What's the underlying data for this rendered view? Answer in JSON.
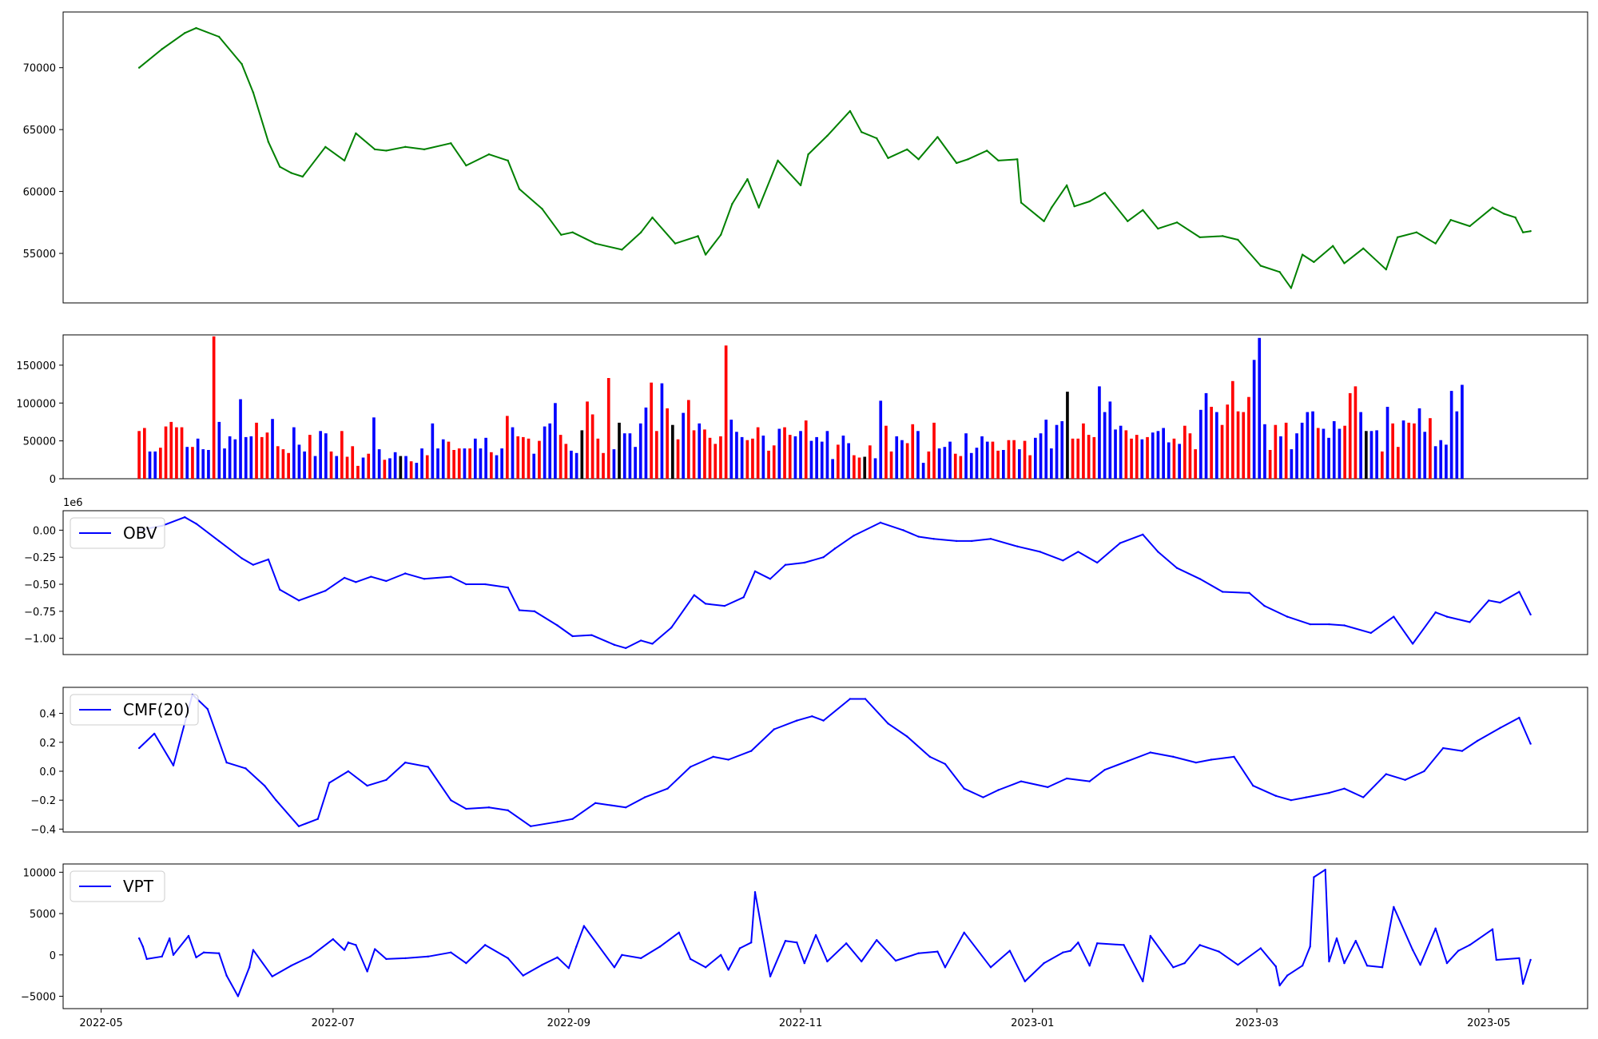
{
  "chart_data": [
    {
      "type": "line",
      "id": "price",
      "color": "#008000",
      "ylim": [
        51000,
        74500
      ],
      "yticks": [
        55000,
        60000,
        65000,
        70000
      ],
      "ytick_labels": [
        "55000",
        "60000",
        "65000",
        "70000"
      ],
      "x": [
        "2022-05-11",
        "2022-05-17",
        "2022-05-23",
        "2022-05-26",
        "2022-06-01",
        "2022-06-07",
        "2022-06-10",
        "2022-06-14",
        "2022-06-17",
        "2022-06-20",
        "2022-06-23",
        "2022-06-29",
        "2022-07-04",
        "2022-07-07",
        "2022-07-12",
        "2022-07-15",
        "2022-07-20",
        "2022-07-25",
        "2022-08-01",
        "2022-08-05",
        "2022-08-11",
        "2022-08-16",
        "2022-08-19",
        "2022-08-25",
        "2022-08-30",
        "2022-09-02",
        "2022-09-08",
        "2022-09-15",
        "2022-09-20",
        "2022-09-23",
        "2022-09-29",
        "2022-10-05",
        "2022-10-07",
        "2022-10-11",
        "2022-10-14",
        "2022-10-18",
        "2022-10-21",
        "2022-10-26",
        "2022-11-01",
        "2022-11-03",
        "2022-11-08",
        "2022-11-14",
        "2022-11-17",
        "2022-11-21",
        "2022-11-24",
        "2022-11-29",
        "2022-12-02",
        "2022-12-07",
        "2022-12-12",
        "2022-12-15",
        "2022-12-20",
        "2022-12-23",
        "2022-12-28",
        "2022-12-29",
        "2023-01-04",
        "2023-01-06",
        "2023-01-10",
        "2023-01-12",
        "2023-01-16",
        "2023-01-20",
        "2023-01-26",
        "2023-01-30",
        "2023-02-03",
        "2023-02-08",
        "2023-02-14",
        "2023-02-20",
        "2023-02-24",
        "2023-03-02",
        "2023-03-07",
        "2023-03-10",
        "2023-03-13",
        "2023-03-16",
        "2023-03-21",
        "2023-03-24",
        "2023-03-29",
        "2023-04-04",
        "2023-04-07",
        "2023-04-12",
        "2023-04-17",
        "2023-04-21",
        "2023-04-26",
        "2023-05-02",
        "2023-05-05",
        "2023-05-08",
        "2023-05-10",
        "2023-05-12"
      ],
      "values": [
        70000,
        71500,
        72800,
        73200,
        72500,
        70300,
        68000,
        64000,
        62000,
        61500,
        61200,
        63600,
        62500,
        64700,
        63400,
        63300,
        63600,
        63400,
        63900,
        62100,
        63000,
        62500,
        60200,
        58600,
        56500,
        56700,
        55800,
        55300,
        56700,
        57900,
        55800,
        56400,
        54900,
        56500,
        59000,
        61000,
        58700,
        62500,
        60500,
        63000,
        64500,
        66500,
        64800,
        64300,
        62700,
        63400,
        62600,
        64400,
        62300,
        62600,
        63300,
        62500,
        62600,
        59100,
        57600,
        58700,
        60500,
        58800,
        59200,
        59900,
        57600,
        58500,
        57000,
        57500,
        56300,
        56400,
        56100,
        54000,
        53500,
        52200,
        54900,
        54300,
        55600,
        54200,
        55400,
        53700,
        56300,
        56700,
        55800,
        57700,
        57200,
        58700,
        58200,
        57900,
        56700,
        56800
      ]
    },
    {
      "type": "bar",
      "id": "volume",
      "ylim": [
        0,
        190000
      ],
      "yticks": [
        0,
        50000,
        100000,
        150000
      ],
      "ytick_labels": [
        "0",
        "50000",
        "100000",
        "150000"
      ],
      "colors": {
        "up": "#ff0000",
        "down": "#0000ff",
        "flat": "#000000"
      },
      "color_pattern": "rrbbrrrrrbrbbbrbbbbbbbrrrbrrrbbbrbbbrbrrrrbrbbrbbbbrbbrbbbrrrbrbbbrbbrbrrrbrbbbrrbbrrrrrrbbbbbbbrrbrrrbrrbrrrrrbbbrrrbrrbrrbbrbbbbbrbbrrrrbbrrbbrrbbrrbbbrrbbbbbrrbrrbrrbbbbbbbrrrrrbbbbbrrrbrbbbbrbrrrbbrbrrrrrrbbbrrbrbbbbbrbbbbrrrbbbbrbrrbrrbbrbbbbbbbrrrrrbbbbrrrrrbbbbbbrrbrrbrrbbrrrrrbbrbbrbbbrbbbbbbrrrrbbrrbrrrbbrrrbrrbbr",
      "values": [
        63000,
        67000,
        36000,
        36000,
        41000,
        69000,
        75000,
        68000,
        68000,
        42000,
        42000,
        53000,
        39000,
        38000,
        188000,
        75000,
        40000,
        56000,
        52000,
        105000,
        55000,
        56000,
        74000,
        55000,
        61000,
        79000,
        43000,
        39000,
        34000,
        68000,
        45000,
        36000,
        58000,
        30000,
        63000,
        60000,
        36000,
        30000,
        63000,
        29000,
        43000,
        17000,
        28000,
        33000,
        81000,
        39000,
        25000,
        27000,
        35000,
        30000,
        30000,
        23000,
        21000,
        40000,
        31000,
        73000,
        40000,
        52000,
        49000,
        38000,
        40000,
        40000,
        40000,
        53000,
        40000,
        54000,
        35000,
        31000,
        40000,
        83000,
        68000,
        56000,
        55000,
        53000,
        33000,
        50000,
        69000,
        73000,
        100000,
        58000,
        46000,
        37000,
        34000,
        64000,
        102000,
        85000,
        53000,
        34000,
        133000,
        39000,
        74000,
        60000,
        60000,
        42000,
        73000,
        94000,
        127000,
        63000,
        126000,
        93000,
        71000,
        52000,
        87000,
        104000,
        64000,
        73000,
        65000,
        54000,
        46000,
        56000,
        176000,
        78000,
        62000,
        55000,
        51000,
        53000,
        68000,
        57000,
        37000,
        44000,
        66000,
        68000,
        58000,
        56000,
        63000,
        77000,
        50000,
        55000,
        49000,
        63000,
        26000,
        45000,
        57000,
        47000,
        31000,
        28000,
        29000,
        44000,
        27000,
        103000,
        70000,
        36000,
        56000,
        51000,
        47000,
        72000,
        63000,
        21000,
        36000,
        74000,
        40000,
        42000,
        49000,
        33000,
        30000,
        60000,
        34000,
        41000,
        56000,
        49000,
        49000,
        37000,
        38000,
        51000,
        51000,
        39000,
        50000,
        31000,
        54000,
        60000,
        78000,
        40000,
        71000,
        76000,
        115000,
        53000,
        53000,
        73000,
        58000,
        55000,
        122000,
        88000,
        102000,
        65000,
        70000,
        64000,
        53000,
        58000,
        52000,
        55000,
        61000,
        63000,
        67000,
        48000,
        53000,
        46000,
        70000,
        60000,
        39000,
        91000,
        113000,
        95000,
        88000,
        71000,
        98000,
        129000,
        89000,
        88000,
        108000,
        157000,
        186000,
        72000,
        38000,
        71000,
        56000,
        74000,
        39000,
        60000,
        74000,
        88000,
        89000,
        67000,
        66000,
        54000,
        76000,
        66000,
        70000,
        113000,
        122000,
        88000,
        63000,
        63000,
        64000,
        36000,
        95000,
        73000,
        42000,
        77000,
        74000,
        73000,
        93000,
        62000,
        80000,
        43000,
        51000,
        45000,
        116000,
        89000,
        124000
      ]
    },
    {
      "type": "line",
      "id": "obv",
      "color": "#0000ff",
      "legend": "OBV",
      "legend_position": "upper left",
      "offset_label": "1e6",
      "ylim": [
        -1.15,
        0.18
      ],
      "yticks": [
        -1.0,
        -0.75,
        -0.5,
        -0.25,
        0.0
      ],
      "ytick_labels": [
        "−1.00",
        "−0.75",
        "−0.50",
        "−0.25",
        "0.00"
      ],
      "x": [
        "2022-05-11",
        "2022-05-17",
        "2022-05-23",
        "2022-05-26",
        "2022-06-01",
        "2022-06-07",
        "2022-06-10",
        "2022-06-14",
        "2022-06-17",
        "2022-06-22",
        "2022-06-29",
        "2022-07-04",
        "2022-07-07",
        "2022-07-11",
        "2022-07-15",
        "2022-07-20",
        "2022-07-25",
        "2022-08-01",
        "2022-08-05",
        "2022-08-10",
        "2022-08-16",
        "2022-08-19",
        "2022-08-23",
        "2022-08-29",
        "2022-09-02",
        "2022-09-07",
        "2022-09-13",
        "2022-09-16",
        "2022-09-20",
        "2022-09-23",
        "2022-09-28",
        "2022-10-04",
        "2022-10-07",
        "2022-10-12",
        "2022-10-17",
        "2022-10-20",
        "2022-10-24",
        "2022-10-28",
        "2022-11-02",
        "2022-11-07",
        "2022-11-10",
        "2022-11-15",
        "2022-11-22",
        "2022-11-28",
        "2022-12-02",
        "2022-12-06",
        "2022-12-12",
        "2022-12-16",
        "2022-12-21",
        "2022-12-28",
        "2023-01-03",
        "2023-01-09",
        "2023-01-13",
        "2023-01-18",
        "2023-01-24",
        "2023-01-30",
        "2023-02-03",
        "2023-02-08",
        "2023-02-14",
        "2023-02-20",
        "2023-02-27",
        "2023-03-03",
        "2023-03-09",
        "2023-03-15",
        "2023-03-20",
        "2023-03-24",
        "2023-03-31",
        "2023-04-06",
        "2023-04-11",
        "2023-04-17",
        "2023-04-20",
        "2023-04-26",
        "2023-05-01",
        "2023-05-04",
        "2023-05-09",
        "2023-05-12"
      ],
      "values": [
        0.0,
        0.04,
        0.12,
        0.06,
        -0.1,
        -0.26,
        -0.32,
        -0.27,
        -0.55,
        -0.65,
        -0.56,
        -0.44,
        -0.48,
        -0.43,
        -0.47,
        -0.4,
        -0.45,
        -0.43,
        -0.5,
        -0.5,
        -0.53,
        -0.74,
        -0.75,
        -0.88,
        -0.98,
        -0.97,
        -1.06,
        -1.09,
        -1.02,
        -1.05,
        -0.9,
        -0.6,
        -0.68,
        -0.7,
        -0.62,
        -0.38,
        -0.45,
        -0.32,
        -0.3,
        -0.25,
        -0.17,
        -0.05,
        0.07,
        0.0,
        -0.06,
        -0.08,
        -0.1,
        -0.1,
        -0.08,
        -0.15,
        -0.2,
        -0.28,
        -0.2,
        -0.3,
        -0.12,
        -0.04,
        -0.2,
        -0.35,
        -0.45,
        -0.57,
        -0.58,
        -0.7,
        -0.8,
        -0.87,
        -0.87,
        -0.88,
        -0.95,
        -0.8,
        -1.05,
        -0.76,
        -0.8,
        -0.85,
        -0.65,
        -0.67,
        -0.57,
        -0.78
      ]
    },
    {
      "type": "line",
      "id": "cmf",
      "color": "#0000ff",
      "legend": "CMF(20)",
      "legend_position": "upper left",
      "ylim": [
        -0.42,
        0.58
      ],
      "yticks": [
        -0.4,
        -0.2,
        0.0,
        0.2,
        0.4
      ],
      "ytick_labels": [
        "−0.4",
        "−0.2",
        "0.0",
        "0.2",
        "0.4"
      ],
      "x": [
        "2022-05-11",
        "2022-05-15",
        "2022-05-20",
        "2022-05-25",
        "2022-05-29",
        "2022-06-03",
        "2022-06-08",
        "2022-06-13",
        "2022-06-16",
        "2022-06-22",
        "2022-06-27",
        "2022-06-30",
        "2022-07-05",
        "2022-07-10",
        "2022-07-15",
        "2022-07-20",
        "2022-07-26",
        "2022-08-01",
        "2022-08-05",
        "2022-08-11",
        "2022-08-16",
        "2022-08-22",
        "2022-08-29",
        "2022-09-02",
        "2022-09-08",
        "2022-09-16",
        "2022-09-21",
        "2022-09-27",
        "2022-10-03",
        "2022-10-09",
        "2022-10-13",
        "2022-10-19",
        "2022-10-25",
        "2022-10-31",
        "2022-11-04",
        "2022-11-07",
        "2022-11-14",
        "2022-11-18",
        "2022-11-24",
        "2022-11-29",
        "2022-12-05",
        "2022-12-09",
        "2022-12-14",
        "2022-12-19",
        "2022-12-23",
        "2022-12-29",
        "2023-01-05",
        "2023-01-10",
        "2023-01-16",
        "2023-01-20",
        "2023-01-26",
        "2023-02-01",
        "2023-02-07",
        "2023-02-13",
        "2023-02-17",
        "2023-02-23",
        "2023-02-28",
        "2023-03-06",
        "2023-03-10",
        "2023-03-14",
        "2023-03-20",
        "2023-03-24",
        "2023-03-29",
        "2023-04-04",
        "2023-04-09",
        "2023-04-14",
        "2023-04-19",
        "2023-04-24",
        "2023-04-28",
        "2023-05-04",
        "2023-05-09",
        "2023-05-12"
      ],
      "values": [
        0.16,
        0.26,
        0.04,
        0.53,
        0.43,
        0.06,
        0.02,
        -0.1,
        -0.2,
        -0.38,
        -0.33,
        -0.08,
        0.0,
        -0.1,
        -0.06,
        0.06,
        0.03,
        -0.2,
        -0.26,
        -0.25,
        -0.27,
        -0.38,
        -0.35,
        -0.33,
        -0.22,
        -0.25,
        -0.18,
        -0.12,
        0.03,
        0.1,
        0.08,
        0.14,
        0.29,
        0.35,
        0.38,
        0.35,
        0.5,
        0.5,
        0.33,
        0.24,
        0.1,
        0.05,
        -0.12,
        -0.18,
        -0.13,
        -0.07,
        -0.11,
        -0.05,
        -0.07,
        0.01,
        0.07,
        0.13,
        0.1,
        0.06,
        0.08,
        0.1,
        -0.1,
        -0.17,
        -0.2,
        -0.18,
        -0.15,
        -0.12,
        -0.18,
        -0.02,
        -0.06,
        0.0,
        0.16,
        0.14,
        0.21,
        0.3,
        0.37,
        0.19
      ]
    },
    {
      "type": "line",
      "id": "vpt",
      "color": "#0000ff",
      "legend": "VPT",
      "legend_position": "upper left",
      "ylim": [
        -6500,
        11000
      ],
      "yticks": [
        -5000,
        0,
        5000,
        10000
      ],
      "ytick_labels": [
        "−5000",
        "0",
        "5000",
        "10000"
      ],
      "x": [
        "2022-05-11",
        "2022-05-12",
        "2022-05-13",
        "2022-05-17",
        "2022-05-19",
        "2022-05-20",
        "2022-05-24",
        "2022-05-26",
        "2022-05-28",
        "2022-06-01",
        "2022-06-03",
        "2022-06-06",
        "2022-06-09",
        "2022-06-10",
        "2022-06-15",
        "2022-06-20",
        "2022-06-25",
        "2022-07-01",
        "2022-07-04",
        "2022-07-05",
        "2022-07-07",
        "2022-07-10",
        "2022-07-12",
        "2022-07-15",
        "2022-07-20",
        "2022-07-26",
        "2022-08-01",
        "2022-08-05",
        "2022-08-10",
        "2022-08-16",
        "2022-08-20",
        "2022-08-25",
        "2022-08-29",
        "2022-09-01",
        "2022-09-03",
        "2022-09-05",
        "2022-09-13",
        "2022-09-15",
        "2022-09-20",
        "2022-09-25",
        "2022-09-30",
        "2022-10-03",
        "2022-10-07",
        "2022-10-11",
        "2022-10-13",
        "2022-10-16",
        "2022-10-19",
        "2022-10-20",
        "2022-10-24",
        "2022-10-28",
        "2022-10-31",
        "2022-11-02",
        "2022-11-05",
        "2022-11-08",
        "2022-11-13",
        "2022-11-17",
        "2022-11-21",
        "2022-11-26",
        "2022-12-02",
        "2022-12-07",
        "2022-12-09",
        "2022-12-14",
        "2022-12-21",
        "2022-12-26",
        "2022-12-30",
        "2023-01-04",
        "2023-01-09",
        "2023-01-11",
        "2023-01-13",
        "2023-01-16",
        "2023-01-18",
        "2023-01-25",
        "2023-01-30",
        "2023-02-01",
        "2023-02-07",
        "2023-02-10",
        "2023-02-14",
        "2023-02-19",
        "2023-02-24",
        "2023-03-02",
        "2023-03-06",
        "2023-03-07",
        "2023-03-09",
        "2023-03-13",
        "2023-03-15",
        "2023-03-16",
        "2023-03-19",
        "2023-03-20",
        "2023-03-22",
        "2023-03-24",
        "2023-03-27",
        "2023-03-30",
        "2023-04-03",
        "2023-04-06",
        "2023-04-11",
        "2023-04-13",
        "2023-04-17",
        "2023-04-20",
        "2023-04-23",
        "2023-04-26",
        "2023-05-02",
        "2023-05-03",
        "2023-05-09",
        "2023-05-10",
        "2023-05-12"
      ],
      "values": [
        2000,
        1000,
        -500,
        -200,
        2000,
        0,
        2300,
        -300,
        300,
        200,
        -2500,
        -5000,
        -1500,
        600,
        -2600,
        -1300,
        -200,
        1900,
        600,
        1500,
        1200,
        -2000,
        700,
        -500,
        -400,
        -200,
        300,
        -1000,
        1200,
        -400,
        -2500,
        -1200,
        -300,
        -1600,
        1000,
        3500,
        -1500,
        0,
        -400,
        1000,
        2700,
        -500,
        -1500,
        0,
        -1800,
        800,
        1500,
        7600,
        -2600,
        1700,
        1500,
        -1000,
        2400,
        -800,
        1400,
        -800,
        1800,
        -700,
        200,
        400,
        -1500,
        2700,
        -1500,
        500,
        -3200,
        -1000,
        300,
        500,
        1500,
        -1300,
        1400,
        1200,
        -3200,
        2300,
        -1500,
        -1000,
        1200,
        400,
        -1200,
        800,
        -1400,
        -3700,
        -2500,
        -1300,
        1000,
        9400,
        10300,
        -800,
        2000,
        -1000,
        1700,
        -1300,
        -1500,
        5800,
        600,
        -1200,
        3200,
        -1000,
        500,
        1200,
        3100,
        -600,
        -400,
        -3500,
        -600
      ]
    }
  ],
  "xaxis": {
    "tick_dates": [
      "2022-05-01",
      "2022-07-01",
      "2022-09-01",
      "2022-11-01",
      "2023-01-01",
      "2023-03-01",
      "2023-05-01"
    ],
    "tick_labels": [
      "2022-05",
      "2022-07",
      "2022-09",
      "2022-11",
      "2023-01",
      "2023-03",
      "2023-05"
    ]
  }
}
